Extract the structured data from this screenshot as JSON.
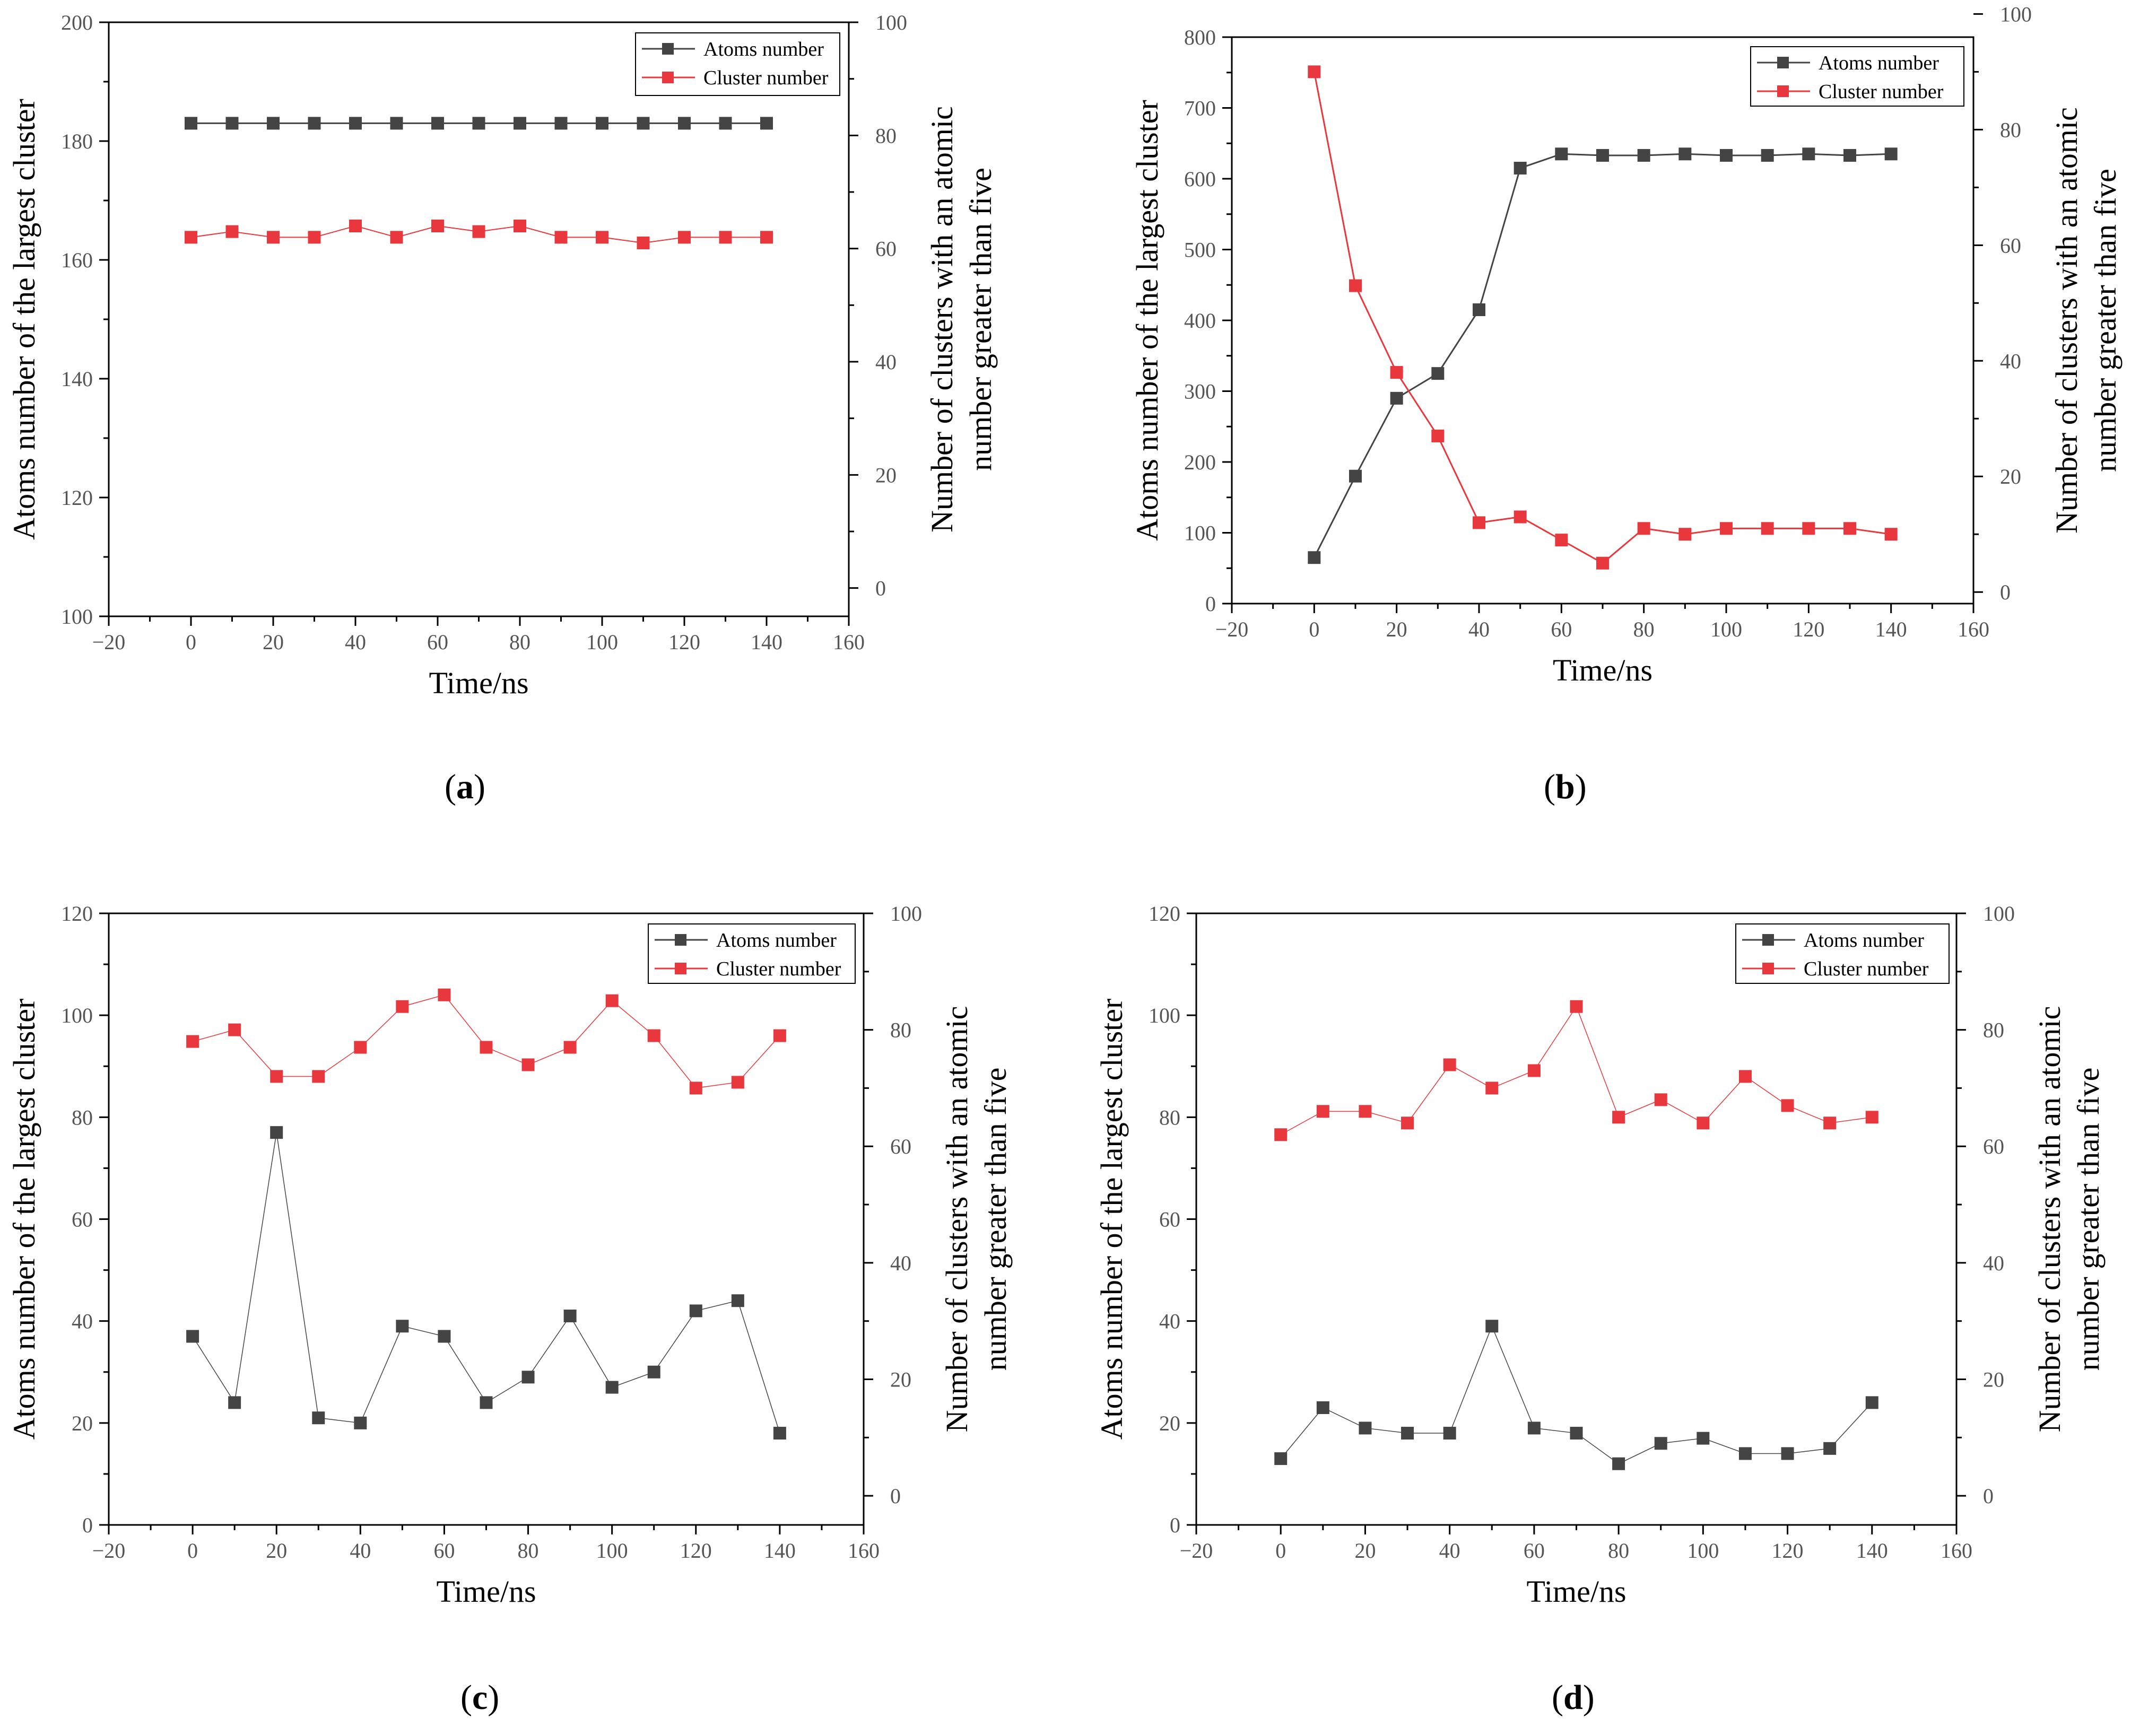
{
  "colors": {
    "atoms": "#444444",
    "cluster": "#e8383d"
  },
  "chart_data": [
    {
      "type": "line",
      "label_open": "(",
      "label_letter": "a",
      "label_close": ")",
      "x": [
        0,
        10,
        20,
        30,
        40,
        50,
        60,
        70,
        80,
        90,
        100,
        110,
        120,
        130,
        140
      ],
      "xlim": [
        -20,
        160
      ],
      "xticks": [
        -20,
        0,
        20,
        40,
        60,
        80,
        100,
        120,
        140,
        160
      ],
      "xtick_labels": [
        "−20",
        "0",
        "20",
        "40",
        "60",
        "80",
        "100",
        "120",
        "140",
        "160"
      ],
      "xlabel": "Time/ns",
      "ylabel": "Atoms number of the largest cluster",
      "ylim": [
        100,
        200
      ],
      "yticks": [
        100,
        120,
        140,
        160,
        180,
        200
      ],
      "y2label_line1": "Number of clusters with an atomic",
      "y2label_line2": "number greater than five",
      "y2lim": [
        -5,
        100
      ],
      "y2ticks": [
        0,
        20,
        40,
        60,
        80,
        100
      ],
      "series": [
        {
          "name": "Atoms number",
          "axis": "left",
          "line_width": 3,
          "values": [
            183,
            183,
            183,
            183,
            183,
            183,
            183,
            183,
            183,
            183,
            183,
            183,
            183,
            183,
            183
          ]
        },
        {
          "name": "Cluster number",
          "axis": "right",
          "line_width": 2,
          "values": [
            62,
            63,
            62,
            62,
            64,
            62,
            64,
            63,
            64,
            62,
            62,
            61,
            62,
            62,
            62
          ]
        }
      ]
    },
    {
      "type": "line",
      "label_open": "(",
      "label_letter": "b",
      "label_close": ")",
      "x": [
        0,
        10,
        20,
        30,
        40,
        50,
        60,
        70,
        80,
        90,
        100,
        110,
        120,
        130,
        140
      ],
      "xlim": [
        -20,
        160
      ],
      "xticks": [
        -20,
        0,
        20,
        40,
        60,
        80,
        100,
        120,
        140,
        160
      ],
      "xtick_labels": [
        "−20",
        "0",
        "20",
        "40",
        "60",
        "80",
        "100",
        "120",
        "140",
        "160"
      ],
      "xlabel": "Time/ns",
      "ylabel": "Atoms number of the largest cluster",
      "ylim": [
        0,
        800
      ],
      "yticks": [
        0,
        100,
        200,
        300,
        400,
        500,
        600,
        700,
        800
      ],
      "y2label_line1": "Number of clusters with an atomic",
      "y2label_line2": "number greater than five",
      "y2lim": [
        -2,
        96
      ],
      "y2ticks": [
        0,
        20,
        40,
        60,
        80,
        100
      ],
      "series": [
        {
          "name": "Atoms number",
          "axis": "left",
          "line_width": 3,
          "values": [
            65,
            180,
            290,
            325,
            415,
            615,
            635,
            633,
            633,
            635,
            633,
            633,
            635,
            633,
            635
          ]
        },
        {
          "name": "Cluster number",
          "axis": "right",
          "line_width": 3,
          "values": [
            90,
            53,
            38,
            27,
            12,
            13,
            9,
            5,
            11,
            10,
            11,
            11,
            11,
            11,
            10
          ]
        }
      ]
    },
    {
      "type": "line",
      "label_open": "(",
      "label_letter": "c",
      "label_close": ")",
      "x": [
        0,
        10,
        20,
        30,
        40,
        50,
        60,
        70,
        80,
        90,
        100,
        110,
        120,
        130,
        140
      ],
      "xlim": [
        -20,
        160
      ],
      "xticks": [
        -20,
        0,
        20,
        40,
        60,
        80,
        100,
        120,
        140,
        160
      ],
      "xtick_labels": [
        "−20",
        "0",
        "20",
        "40",
        "60",
        "80",
        "100",
        "120",
        "140",
        "160"
      ],
      "xlabel": "Time/ns",
      "ylabel": "Atoms number of the largest cluster",
      "ylim": [
        0,
        120
      ],
      "yticks": [
        0,
        20,
        40,
        60,
        80,
        100,
        120
      ],
      "y2label_line1": "Number of clusters with an atomic",
      "y2label_line2": "number greater than five",
      "y2lim": [
        -5,
        100
      ],
      "y2ticks": [
        0,
        20,
        40,
        60,
        80,
        100
      ],
      "series": [
        {
          "name": "Atoms number",
          "axis": "left",
          "line_width": 1.5,
          "values": [
            37,
            24,
            77,
            21,
            20,
            39,
            37,
            24,
            29,
            41,
            27,
            30,
            42,
            44,
            18
          ]
        },
        {
          "name": "Cluster number",
          "axis": "right",
          "line_width": 1.5,
          "values": [
            78,
            80,
            72,
            72,
            77,
            84,
            86,
            77,
            74,
            77,
            85,
            79,
            70,
            71,
            79
          ]
        }
      ]
    },
    {
      "type": "line",
      "label_open": "(",
      "label_letter": "d",
      "label_close": ")",
      "x": [
        0,
        10,
        20,
        30,
        40,
        50,
        60,
        70,
        80,
        90,
        100,
        110,
        120,
        130,
        140
      ],
      "xlim": [
        -20,
        160
      ],
      "xticks": [
        -20,
        0,
        20,
        40,
        60,
        80,
        100,
        120,
        140,
        160
      ],
      "xtick_labels": [
        "−20",
        "0",
        "20",
        "40",
        "60",
        "80",
        "100",
        "120",
        "140",
        "160"
      ],
      "xlabel": "Time/ns",
      "ylabel": "Atoms number of the largest cluster",
      "ylim": [
        0,
        120
      ],
      "yticks": [
        0,
        20,
        40,
        60,
        80,
        100,
        120
      ],
      "y2label_line1": "Number of clusters with an atomic",
      "y2label_line2": "number greater than five",
      "y2lim": [
        -5,
        100
      ],
      "y2ticks": [
        0,
        20,
        40,
        60,
        80,
        100
      ],
      "series": [
        {
          "name": "Atoms number",
          "axis": "left",
          "line_width": 1.5,
          "values": [
            13,
            23,
            19,
            18,
            18,
            39,
            19,
            18,
            12,
            16,
            17,
            14,
            14,
            15,
            24
          ]
        },
        {
          "name": "Cluster number",
          "axis": "right",
          "line_width": 1.5,
          "values": [
            62,
            66,
            66,
            64,
            74,
            70,
            73,
            84,
            65,
            68,
            64,
            72,
            67,
            64,
            65
          ]
        }
      ]
    }
  ]
}
